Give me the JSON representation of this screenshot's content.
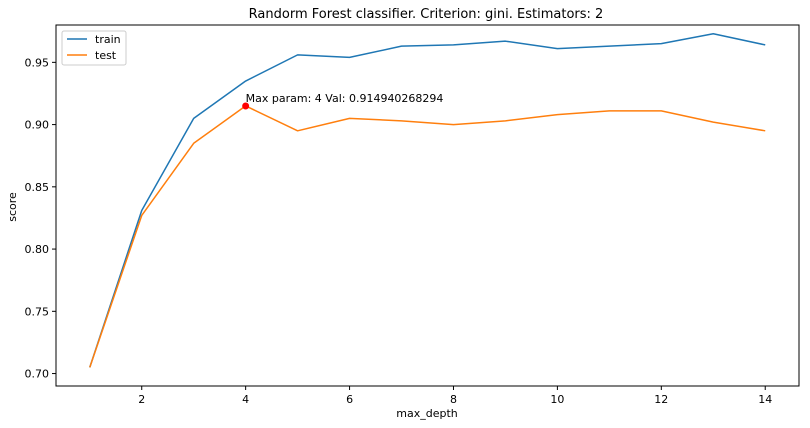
{
  "chart_data": {
    "type": "line",
    "title": "Randorm Forest classifier. Criterion: gini. Estimators: 2",
    "xlabel": "max_depth",
    "ylabel": "score",
    "xlim": [
      0.35,
      14.65
    ],
    "ylim": [
      0.69,
      0.98
    ],
    "xticks": [
      2,
      4,
      6,
      8,
      10,
      12,
      14
    ],
    "yticks": [
      0.7,
      0.75,
      0.8,
      0.85,
      0.9,
      0.95
    ],
    "xtick_labels": [
      "2",
      "4",
      "6",
      "8",
      "10",
      "12",
      "14"
    ],
    "ytick_labels": [
      "0.70",
      "0.75",
      "0.80",
      "0.85",
      "0.90",
      "0.95"
    ],
    "grid": false,
    "legend": "upper left",
    "x": [
      1,
      2,
      3,
      4,
      5,
      6,
      7,
      8,
      9,
      10,
      11,
      12,
      13,
      14
    ],
    "series": [
      {
        "name": "train",
        "color": "#1f77b4",
        "values": [
          0.705,
          0.831,
          0.905,
          0.935,
          0.956,
          0.954,
          0.963,
          0.964,
          0.967,
          0.961,
          0.963,
          0.965,
          0.973,
          0.964
        ]
      },
      {
        "name": "test",
        "color": "#ff7f0e",
        "values": [
          0.705,
          0.827,
          0.885,
          0.915,
          0.895,
          0.905,
          0.903,
          0.9,
          0.903,
          0.908,
          0.911,
          0.911,
          0.902,
          0.895
        ]
      }
    ],
    "annotation": {
      "text": "Max param: 4 Val: 0.914940268294",
      "x": 4,
      "y": 0.914940268294,
      "marker_color": "#ff0000"
    }
  }
}
